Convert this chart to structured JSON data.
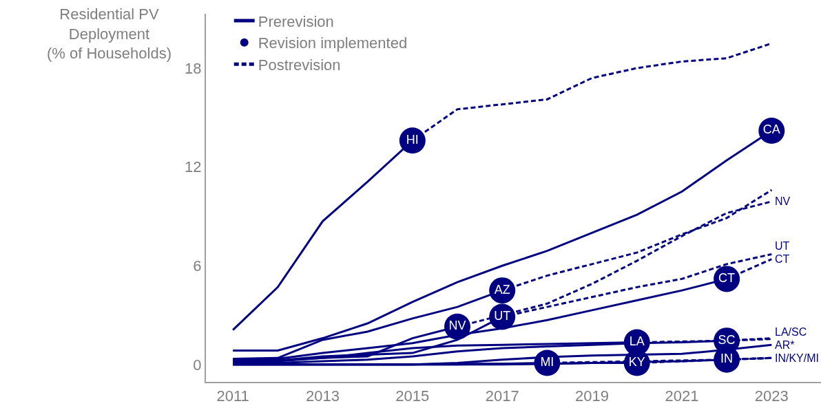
{
  "chart_data": {
    "type": "line",
    "ylabel": "Residential PV\nDeployment\n(% of Households)",
    "xlim": [
      2010.4,
      2024.1
    ],
    "xticks": [
      2011,
      2013,
      2015,
      2017,
      2019,
      2021,
      2023
    ],
    "ylim": [
      -1.05,
      21.3
    ],
    "yticks": [
      0,
      6,
      12,
      18
    ],
    "legend": "top left",
    "series": [
      {
        "name": "Prerevision",
        "color": "#000080",
        "line_style": "solid",
        "x": [
          2011,
          2012,
          2013,
          2014,
          2015
        ],
        "values": [
          2.1,
          4.7,
          8.7,
          11.1,
          13.6
        ]
      },
      {
        "name": "Revision implemented",
        "type": "scatter",
        "marker": "circle",
        "color": "#000080",
        "x": [
          2015,
          2023,
          2017,
          2016,
          2017,
          2022,
          2020,
          2022,
          2018,
          2020,
          2022
        ],
        "values": [
          13.6,
          14.2,
          4.5,
          2.3,
          2.9,
          5.2,
          1.35,
          1.45,
          0.1,
          0.1,
          0.3
        ],
        "value_labels": [
          "HI",
          "CA",
          "AZ",
          "NV",
          "UT",
          "CT",
          "LA",
          "SC",
          "MI",
          "KY",
          "IN"
        ]
      },
      {
        "name": "Postrevision",
        "color": "#000080",
        "line_style": "dashed",
        "x": [
          2015,
          2016,
          2017,
          2018,
          2019,
          2020,
          2021,
          2022,
          2023
        ],
        "values": [
          13.6,
          15.5,
          15.8,
          16.1,
          17.4,
          18.0,
          18.4,
          18.6,
          19.5
        ]
      },
      {
        "color": "#000080",
        "line_style": "solid",
        "x": [
          2011,
          2012,
          2013,
          2014,
          2015,
          2016,
          2017,
          2018,
          2019,
          2020,
          2021,
          2022,
          2023
        ],
        "values": [
          0.85,
          0.85,
          1.6,
          2.5,
          3.8,
          5.0,
          6.0,
          6.9,
          8.0,
          9.1,
          10.5,
          12.4,
          14.2
        ]
      },
      {
        "color": "#000080",
        "line_style": "solid",
        "x": [
          2011,
          2012,
          2013,
          2014,
          2015,
          2016,
          2017
        ],
        "values": [
          0.35,
          0.4,
          1.5,
          2.0,
          2.8,
          3.5,
          4.5
        ]
      },
      {
        "color": "#000080",
        "line_style": "dashed",
        "x": [
          2017,
          2018,
          2019,
          2020,
          2021,
          2022,
          2023
        ],
        "values": [
          4.5,
          5.4,
          6.1,
          6.8,
          7.9,
          8.9,
          10.6
        ]
      },
      {
        "color": "#000080",
        "line_style": "solid",
        "x": [
          2011,
          2012,
          2013,
          2014,
          2015,
          2016
        ],
        "values": [
          0.2,
          0.25,
          0.4,
          0.5,
          1.6,
          2.3
        ]
      },
      {
        "name": "NV",
        "color": "#000080",
        "line_style": "dashed",
        "x": [
          2016,
          2017,
          2018,
          2019,
          2020,
          2021,
          2022,
          2023
        ],
        "values": [
          2.3,
          3.0,
          3.7,
          4.9,
          6.3,
          7.8,
          9.2,
          9.9
        ]
      },
      {
        "color": "#000080",
        "line_style": "solid",
        "x": [
          2011,
          2012,
          2013,
          2014,
          2015,
          2016,
          2017
        ],
        "values": [
          0.2,
          0.25,
          0.5,
          0.6,
          0.7,
          1.5,
          2.9
        ]
      },
      {
        "name": "UT",
        "color": "#000080",
        "line_style": "dashed",
        "x": [
          2017,
          2018,
          2019,
          2020,
          2021,
          2022,
          2023
        ],
        "values": [
          2.9,
          3.5,
          4.1,
          4.7,
          5.2,
          6.1,
          6.7
        ]
      },
      {
        "color": "#000080",
        "line_style": "solid",
        "x": [
          2011,
          2012,
          2013,
          2014,
          2015,
          2016,
          2017,
          2018,
          2019,
          2020,
          2021,
          2022
        ],
        "values": [
          0.3,
          0.35,
          0.7,
          1.0,
          1.3,
          1.8,
          2.2,
          2.7,
          3.3,
          3.9,
          4.5,
          5.2
        ]
      },
      {
        "name": "CT",
        "color": "#000080",
        "line_style": "dashed",
        "x": [
          2022,
          2023
        ],
        "values": [
          5.2,
          6.4
        ]
      },
      {
        "color": "#000080",
        "line_style": "solid",
        "x": [
          2011,
          2012,
          2013,
          2014,
          2015,
          2016,
          2017,
          2018,
          2019,
          2020
        ],
        "values": [
          0.1,
          0.2,
          0.4,
          0.7,
          1.0,
          1.15,
          1.2,
          1.25,
          1.3,
          1.35
        ]
      },
      {
        "name": "LA/SC",
        "color": "#000080",
        "line_style": "dashed",
        "x": [
          2020,
          2021,
          2022,
          2023
        ],
        "values": [
          1.35,
          1.4,
          1.45,
          1.55
        ]
      },
      {
        "color": "#000080",
        "line_style": "solid",
        "x": [
          2011,
          2012,
          2013,
          2014,
          2015,
          2016,
          2017,
          2018,
          2019,
          2020,
          2021,
          2022
        ],
        "values": [
          0.05,
          0.1,
          0.2,
          0.3,
          0.5,
          0.8,
          1.0,
          1.1,
          1.2,
          1.3,
          1.35,
          1.45
        ]
      },
      {
        "color": "#000080",
        "line_style": "dashed",
        "x": [
          2022,
          2023
        ],
        "values": [
          1.45,
          1.6
        ]
      },
      {
        "name": "AR*",
        "color": "#000080",
        "line_style": "solid",
        "x": [
          2011,
          2012,
          2013,
          2014,
          2015,
          2016,
          2017,
          2018,
          2019,
          2020,
          2021,
          2022,
          2023
        ],
        "values": [
          0.0,
          0.0,
          0.0,
          0.0,
          0.0,
          0.1,
          0.3,
          0.45,
          0.55,
          0.6,
          0.65,
          0.9,
          1.2
        ]
      },
      {
        "color": "#000080",
        "line_style": "solid",
        "x": [
          2011,
          2012,
          2013,
          2014,
          2015,
          2016,
          2017,
          2018
        ],
        "values": [
          0.0,
          0.0,
          0.0,
          0.0,
          0.0,
          0.05,
          0.05,
          0.1
        ]
      },
      {
        "color": "#000080",
        "line_style": "dashed",
        "x": [
          2018,
          2019,
          2020,
          2021,
          2022,
          2023
        ],
        "values": [
          0.1,
          0.15,
          0.2,
          0.25,
          0.3,
          0.4
        ]
      },
      {
        "color": "#000080",
        "line_style": "solid",
        "x": [
          2011,
          2012,
          2013,
          2014,
          2015,
          2016,
          2017,
          2018,
          2019,
          2020
        ],
        "values": [
          0.0,
          0.0,
          0.0,
          0.0,
          0.0,
          0.0,
          0.05,
          0.05,
          0.1,
          0.1
        ]
      },
      {
        "color": "#000080",
        "line_style": "dashed",
        "x": [
          2020,
          2021,
          2022,
          2023
        ],
        "values": [
          0.1,
          0.2,
          0.3,
          0.4
        ]
      },
      {
        "color": "#000080",
        "line_style": "solid",
        "x": [
          2011,
          2012,
          2013,
          2014,
          2015,
          2016,
          2017,
          2018,
          2019,
          2020,
          2021,
          2022
        ],
        "values": [
          0.0,
          0.0,
          0.0,
          0.0,
          0.0,
          0.0,
          0.0,
          0.05,
          0.1,
          0.15,
          0.2,
          0.3
        ]
      },
      {
        "name": "IN/KY/MI",
        "color": "#000080",
        "line_style": "dashed",
        "x": [
          2022,
          2023
        ],
        "values": [
          0.3,
          0.4
        ]
      }
    ]
  }
}
